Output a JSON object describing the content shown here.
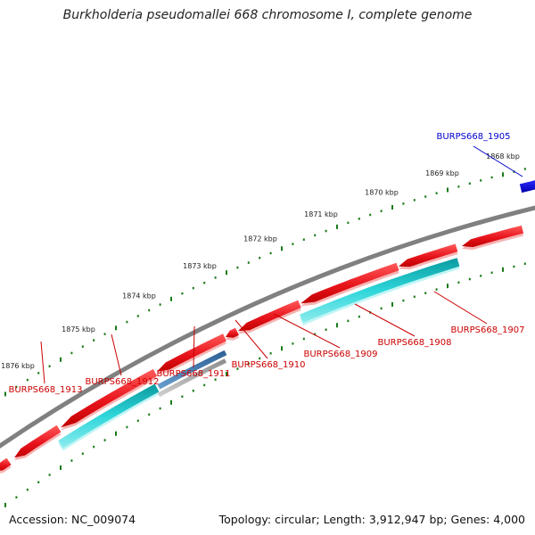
{
  "title": "Burkholderia pseudomallei 668 chromosome I, complete genome",
  "footer": {
    "accession": "Accession: NC_009074",
    "topology": "Topology: circular; Length: 3,912,947 bp; Genes: 4,000"
  },
  "kbp_labels": [
    "1876 kbp",
    "1875 kbp",
    "1874 kbp",
    "1873 kbp",
    "1872 kbp",
    "1871 kbp",
    "1870 kbp",
    "1869 kbp",
    "1868 kbp"
  ],
  "gene_labels": [
    {
      "name": "BURPS668_1905",
      "color": "#0000cc"
    },
    {
      "name": "BURPS668_1907",
      "color": "#cc0000"
    },
    {
      "name": "BURPS668_1908",
      "color": "#cc0000"
    },
    {
      "name": "BURPS668_1909",
      "color": "#cc0000"
    },
    {
      "name": "BURPS668_1910",
      "color": "#cc0000"
    },
    {
      "name": "BURPS668_1911",
      "color": "#cc0000"
    },
    {
      "name": "BURPS668_1912",
      "color": "#cc0000"
    },
    {
      "name": "BURPS668_1913",
      "color": "#cc0000"
    }
  ],
  "colors": {
    "cds": "#e8141c",
    "gene_teal": "#1fc4c8",
    "gene_steel": "#3a78b0",
    "gene_gray": "#a8a8a8",
    "backbone": "#808080",
    "ticks": "#1a7a1a",
    "highlight": "#0000dd"
  }
}
